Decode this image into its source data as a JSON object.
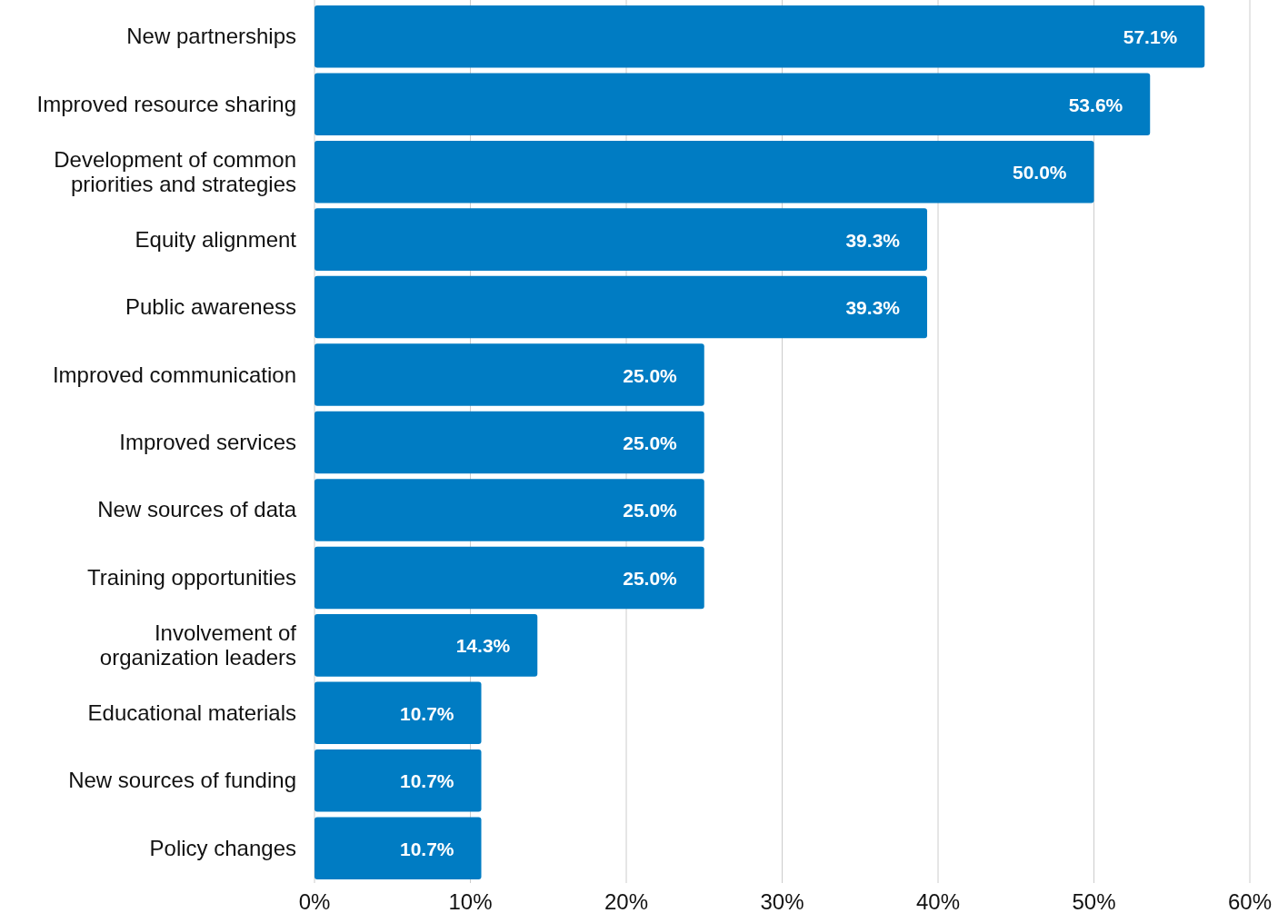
{
  "chart_data": {
    "type": "bar",
    "orientation": "horizontal",
    "categories": [
      "New partnerships",
      "Improved resource sharing",
      "Development of common priorities and strategies",
      "Equity alignment",
      "Public awareness",
      "Improved communication",
      "Improved services",
      "New sources of data",
      "Training opportunities",
      "Involvement of organization leaders",
      "Educational materials",
      "New sources of funding",
      "Policy changes"
    ],
    "values": [
      57.1,
      53.6,
      50.0,
      39.3,
      39.3,
      25.0,
      25.0,
      25.0,
      25.0,
      14.3,
      10.7,
      10.7,
      10.7
    ],
    "value_labels": [
      "57.1%",
      "53.6%",
      "50.0%",
      "39.3%",
      "39.3%",
      "25.0%",
      "25.0%",
      "25.0%",
      "25.0%",
      "14.3%",
      "10.7%",
      "10.7%",
      "10.7%"
    ],
    "color": "#007cc3",
    "xlim": [
      0,
      60
    ],
    "xticks": [
      {
        "value": 0,
        "label": "0%"
      },
      {
        "value": 10,
        "label": "10%"
      },
      {
        "value": 20,
        "label": "20%"
      },
      {
        "value": 30,
        "label": "30%"
      },
      {
        "value": 40,
        "label": "40%"
      },
      {
        "value": 50,
        "label": "50%"
      },
      {
        "value": 60,
        "label": "60%"
      }
    ],
    "grid": "x"
  }
}
